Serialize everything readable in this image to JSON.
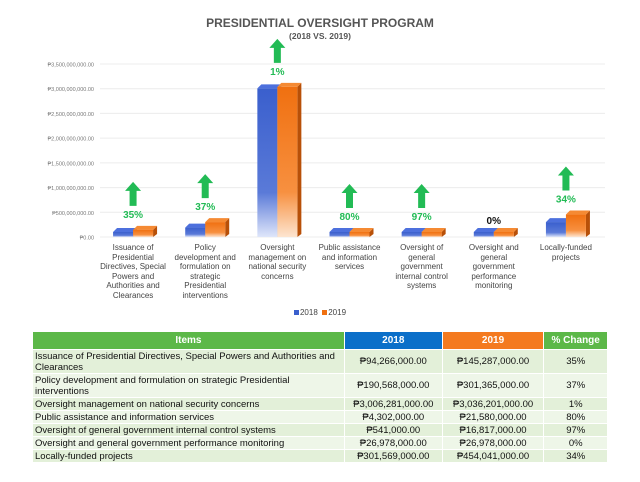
{
  "chart_data": {
    "type": "bar",
    "title": "PRESIDENTIAL OVERSIGHT PROGRAM",
    "subtitle": "(2018 VS. 2019)",
    "categories": [
      "Issuance of Presidential Directives, Special Powers and Authorities and Clearances",
      "Policy development and formulation on strategic Presidential interventions",
      "Oversight management on national security concerns",
      "Public assistance and information services",
      "Oversight of general government internal control systems",
      "Oversight and general government performance monitoring",
      "Locally-funded projects"
    ],
    "series": [
      {
        "name": "2018",
        "color": "#3a5fcd",
        "values": [
          94266000,
          190568000,
          3006281000,
          4302000,
          541000,
          26978000,
          301569000
        ]
      },
      {
        "name": "2019",
        "color": "#f07010",
        "values": [
          145287000,
          301365000,
          3036201000,
          21580000,
          16817000,
          26978000,
          454041000
        ]
      }
    ],
    "annotations": [
      "35%",
      "37%",
      "1%",
      "80%",
      "97%",
      "0%",
      "34%"
    ],
    "annotation_arrows": [
      true,
      true,
      true,
      true,
      true,
      false,
      true
    ],
    "annotation_color": "#22bb55",
    "ylim": [
      0,
      3500000000
    ],
    "yticks": [
      "₱0.00",
      "₱500,000,000.00",
      "₱1,000,000,000.00",
      "₱1,500,000,000.00",
      "₱2,000,000,000.00",
      "₱2,500,000,000.00",
      "₱3,000,000,000.00",
      "₱3,500,000,000.00"
    ],
    "grid": true,
    "legend": "bottom"
  },
  "table": {
    "headers": [
      "Items",
      "2018",
      "2019",
      "% Change"
    ],
    "header_colors": [
      "#5cb848",
      "#0b6fc9",
      "#f47a1f",
      "#5cb848"
    ],
    "rows": [
      [
        "Issuance of Presidential Directives, Special Powers and Authorities and Clearances",
        "₱94,266,000.00",
        "₱145,287,000.00",
        "35%"
      ],
      [
        "Policy development and formulation on strategic Presidential interventions",
        "₱190,568,000.00",
        "₱301,365,000.00",
        "37%"
      ],
      [
        "Oversight management on national security concerns",
        "₱3,006,281,000.00",
        "₱3,036,201,000.00",
        "1%"
      ],
      [
        "Public assistance and information services",
        "₱4,302,000.00",
        "₱21,580,000.00",
        "80%"
      ],
      [
        "Oversight of general government internal control systems",
        "₱541,000.00",
        "₱16,817,000.00",
        "97%"
      ],
      [
        "Oversight and general government performance monitoring",
        "₱26,978,000.00",
        "₱26,978,000.00",
        "0%"
      ],
      [
        "Locally-funded projects",
        "₱301,569,000.00",
        "₱454,041,000.00",
        "34%"
      ]
    ]
  }
}
